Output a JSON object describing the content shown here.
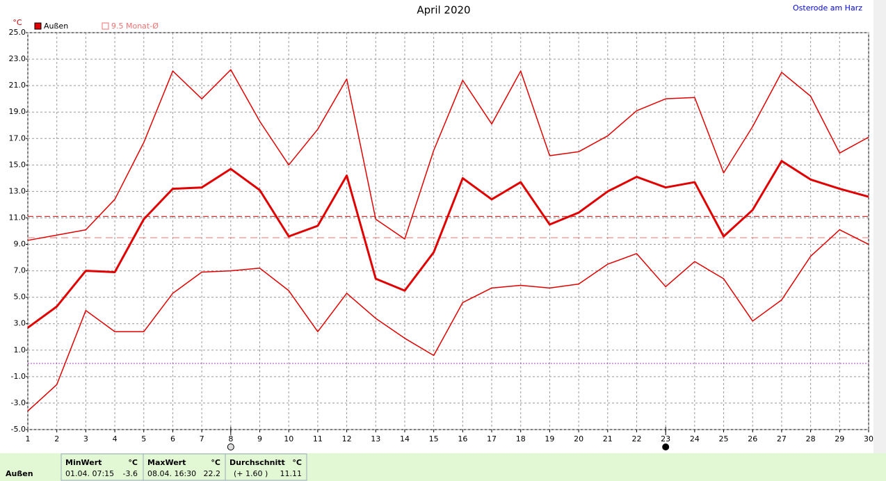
{
  "chart_data": {
    "type": "line",
    "title": "April 2020",
    "location": "Osterode am Harz",
    "unit": "°C",
    "x": [
      1,
      2,
      3,
      4,
      5,
      6,
      7,
      8,
      9,
      10,
      11,
      12,
      13,
      14,
      15,
      16,
      17,
      18,
      19,
      20,
      21,
      22,
      23,
      24,
      25,
      26,
      27,
      28,
      29,
      30
    ],
    "xlim": [
      1,
      30
    ],
    "xticks": [
      1,
      2,
      3,
      4,
      5,
      6,
      7,
      8,
      9,
      10,
      11,
      12,
      13,
      14,
      15,
      16,
      17,
      18,
      19,
      20,
      21,
      22,
      23,
      24,
      25,
      26,
      27,
      28,
      29,
      30
    ],
    "ylim": [
      -5,
      25
    ],
    "yticks": [
      {
        "value": 25,
        "label": "25.0"
      },
      {
        "value": 23,
        "label": "23.0"
      },
      {
        "value": 21,
        "label": "21.0"
      },
      {
        "value": 19,
        "label": "19.0"
      },
      {
        "value": 17,
        "label": "17.0"
      },
      {
        "value": 15,
        "label": "15.0"
      },
      {
        "value": 13,
        "label": "13.0"
      },
      {
        "value": 11,
        "label": "11.0"
      },
      {
        "value": 9,
        "label": "9.0"
      },
      {
        "value": 7,
        "label": "7.0"
      },
      {
        "value": 5,
        "label": "5.0"
      },
      {
        "value": 3,
        "label": "3.0"
      },
      {
        "value": 1,
        "label": "1.0"
      },
      {
        "value": -1,
        "label": "-1.0"
      },
      {
        "value": -3,
        "label": "-3.0"
      },
      {
        "value": -5,
        "label": "-5.0"
      }
    ],
    "grid": true,
    "series": [
      {
        "color": "#e00000",
        "width": 1.5,
        "values": [
          9.3,
          9.7,
          10.1,
          12.4,
          16.7,
          22.1,
          20.0,
          22.2,
          18.3,
          15.0,
          17.7,
          21.5,
          10.9,
          9.4,
          16.1,
          21.4,
          18.1,
          22.1,
          15.7,
          16.0,
          17.2,
          19.1,
          20.0,
          20.1,
          14.4,
          17.9,
          22.0,
          20.2,
          15.9,
          17.1
        ]
      },
      {
        "color": "#e00000",
        "width": 3,
        "values": [
          2.7,
          4.3,
          7.0,
          6.9,
          10.9,
          13.2,
          13.3,
          14.7,
          13.1,
          9.6,
          10.4,
          14.2,
          6.4,
          5.5,
          8.4,
          14.0,
          12.4,
          13.7,
          10.5,
          11.4,
          13.0,
          14.1,
          13.3,
          13.7,
          9.6,
          11.6,
          15.3,
          13.9,
          13.2,
          12.6
        ]
      },
      {
        "color": "#e00000",
        "width": 1.5,
        "values": [
          -3.6,
          -1.6,
          4.0,
          2.4,
          2.4,
          5.3,
          6.9,
          7.0,
          7.2,
          5.5,
          2.4,
          5.3,
          3.4,
          1.9,
          0.6,
          4.6,
          5.7,
          5.9,
          5.7,
          6.0,
          7.5,
          8.3,
          5.8,
          7.7,
          6.4,
          3.2,
          4.8,
          8.1,
          10.1,
          9.0
        ]
      }
    ],
    "legend_label": "Außen",
    "legend_color": "#e00000",
    "reference_line": {
      "value": 9.5,
      "label": "9.5 Monat-Ø",
      "color": "#f07070"
    },
    "zero_line_color": "#b040d0",
    "markers_x": [
      8,
      23
    ]
  },
  "footer": {
    "row_label": "Außen",
    "min": {
      "title": "MinWert",
      "unit": "°C",
      "when": "01.04.  07:15",
      "value": -3.6
    },
    "max": {
      "title": "MaxWert",
      "unit": "°C",
      "when": "08.04.  16:30",
      "value": 22.2
    },
    "average": {
      "title": "Durchschnitt",
      "unit": "°C",
      "delta": "(+ 1.60 )",
      "value": 11.11
    }
  }
}
